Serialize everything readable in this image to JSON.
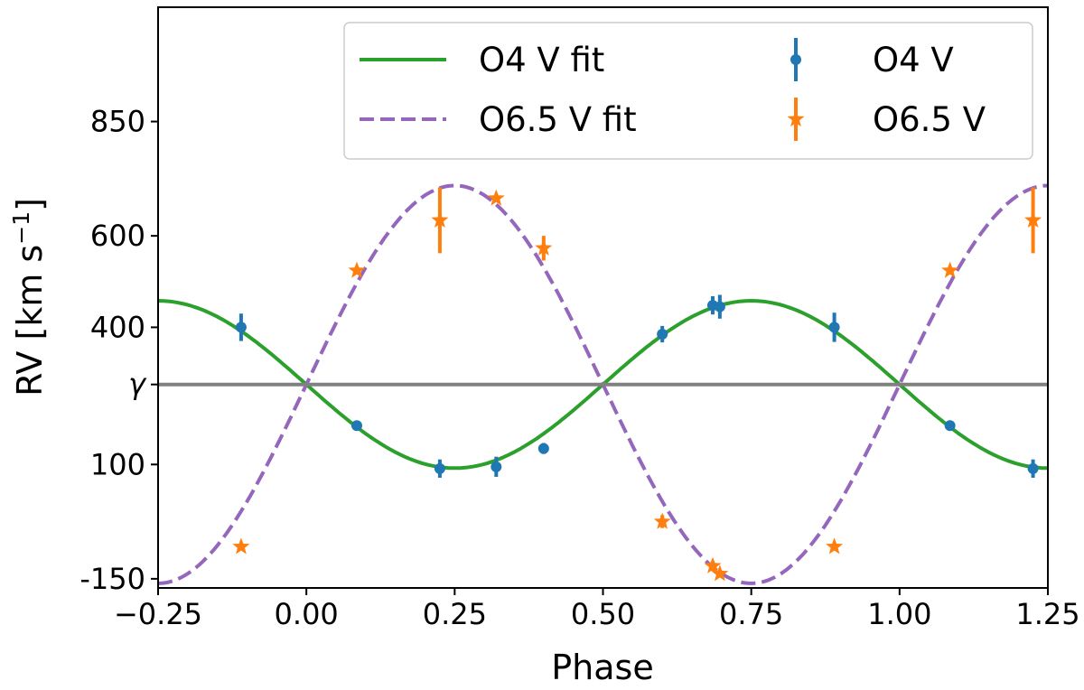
{
  "chart_data": {
    "type": "scatter",
    "xlabel": "Phase",
    "ylabel": "RV [km s",
    "ylabel_sup": "−1",
    "ylabel_end": "]",
    "xlim": [
      -0.25,
      1.25
    ],
    "ylim": [
      -170,
      1100
    ],
    "x_ticks": [
      -0.25,
      0.0,
      0.25,
      0.5,
      0.75,
      1.0,
      1.25
    ],
    "x_tick_labels": [
      "−0.25",
      "0.00",
      "0.25",
      "0.50",
      "0.75",
      "1.00",
      "1.25"
    ],
    "y_ticks": [
      -150,
      100,
      275,
      400,
      600,
      850
    ],
    "y_tick_labels": [
      "-150",
      "100",
      "γ",
      "400",
      "600",
      "850"
    ],
    "gamma": 275,
    "grid": false,
    "legend_position": "top-right",
    "fits": [
      {
        "name": "O4 V fit",
        "color": "#2ca02c",
        "style": "solid",
        "gamma": 275,
        "K": -183
      },
      {
        "name": "O6.5 V fit",
        "color": "#9467bd",
        "style": "dashed",
        "gamma": 275,
        "K": 435
      }
    ],
    "series": [
      {
        "name": "O4 V",
        "color": "#1f77b4",
        "marker": "circle",
        "points": [
          {
            "x": -0.11,
            "y": 400,
            "err": 30
          },
          {
            "x": 0.085,
            "y": 185,
            "err": 4
          },
          {
            "x": 0.225,
            "y": 91,
            "err": 20
          },
          {
            "x": 0.32,
            "y": 95,
            "err": 22
          },
          {
            "x": 0.4,
            "y": 135,
            "err": 12
          },
          {
            "x": 0.6,
            "y": 385,
            "err": 18
          },
          {
            "x": 0.685,
            "y": 448,
            "err": 20
          },
          {
            "x": 0.697,
            "y": 445,
            "err": 26
          },
          {
            "x": 0.89,
            "y": 400,
            "err": 32
          },
          {
            "x": 1.085,
            "y": 185,
            "err": 4
          },
          {
            "x": 1.225,
            "y": 91,
            "err": 20
          }
        ]
      },
      {
        "name": "O6.5 V",
        "color": "#ff7f0e",
        "marker": "star",
        "points": [
          {
            "x": -0.11,
            "y": -80,
            "err": 5
          },
          {
            "x": 0.085,
            "y": 524,
            "err": 8
          },
          {
            "x": 0.225,
            "y": 634,
            "err": 72
          },
          {
            "x": 0.32,
            "y": 682,
            "err": 7
          },
          {
            "x": 0.4,
            "y": 573,
            "err": 27
          },
          {
            "x": 0.6,
            "y": -25,
            "err": 14
          },
          {
            "x": 0.685,
            "y": -122,
            "err": 11
          },
          {
            "x": 0.697,
            "y": -139,
            "err": 8
          },
          {
            "x": 0.89,
            "y": -80,
            "err": 5
          },
          {
            "x": 1.085,
            "y": 524,
            "err": 8
          },
          {
            "x": 1.225,
            "y": 634,
            "err": 72
          }
        ]
      }
    ]
  }
}
